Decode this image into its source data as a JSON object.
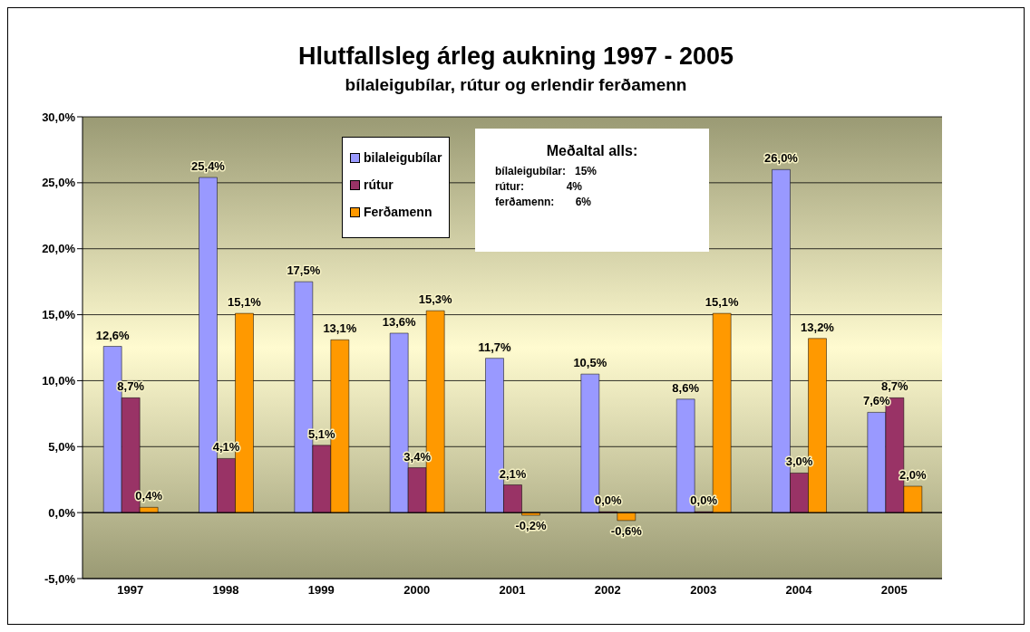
{
  "chart_data": {
    "type": "bar",
    "title": "Hlutfallsleg árleg aukning 1997 - 2005",
    "subtitle": "bílaleigubílar, rútur og erlendir ferðamenn",
    "categories": [
      "1997",
      "1998",
      "1999",
      "2000",
      "2001",
      "2002",
      "2003",
      "2004",
      "2005"
    ],
    "series": [
      {
        "name": "bilaleigubílar",
        "color": "#9999ff",
        "values": [
          12.6,
          25.4,
          17.5,
          13.6,
          11.7,
          10.5,
          8.6,
          26.0,
          7.6
        ],
        "value_labels": [
          "12,6%",
          "25,4%",
          "17,5%",
          "13,6%",
          "11,7%",
          "10,5%",
          "8,6%",
          "26,0%",
          "7,6%"
        ]
      },
      {
        "name": "rútur",
        "color": "#993366",
        "values": [
          8.7,
          4.1,
          5.1,
          3.4,
          2.1,
          0.0,
          0.0,
          3.0,
          8.7
        ],
        "value_labels": [
          "8,7%",
          "4,1%",
          "5,1%",
          "3,4%",
          "2,1%",
          "0,0%",
          "0,0%",
          "3,0%",
          "8,7%"
        ]
      },
      {
        "name": "Ferðamenn",
        "color": "#ff9900",
        "values": [
          0.4,
          15.1,
          13.1,
          15.3,
          -0.2,
          -0.6,
          15.1,
          13.2,
          2.0
        ],
        "value_labels": [
          "0,4%",
          "15,1%",
          "13,1%",
          "15,3%",
          "-0,2%",
          "-0,6%",
          "15,1%",
          "13,2%",
          "2,0%"
        ]
      }
    ],
    "ylim": [
      -5,
      30
    ],
    "yticks": [
      {
        "value": -5,
        "label": "-5,0%"
      },
      {
        "value": 0,
        "label": "0,0%"
      },
      {
        "value": 5,
        "label": "5,0%"
      },
      {
        "value": 10,
        "label": "10,0%"
      },
      {
        "value": 15,
        "label": "15,0%"
      },
      {
        "value": 20,
        "label": "20,0%"
      },
      {
        "value": 25,
        "label": "25,0%"
      },
      {
        "value": 30,
        "label": "30,0%"
      }
    ],
    "grid": "y",
    "legend": "top",
    "annotations": [
      "Meðaltal alls:",
      "bílaleigubílar:   15%",
      "rútur:              4%",
      "ferðamenn:       6%"
    ]
  }
}
